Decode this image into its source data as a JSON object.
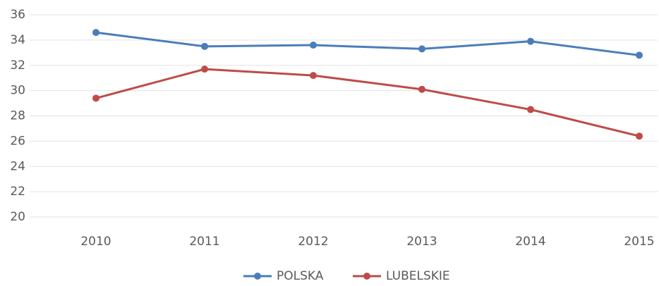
{
  "chart_data": {
    "type": "line",
    "categories": [
      "2010",
      "2011",
      "2012",
      "2013",
      "2014",
      "2015"
    ],
    "series": [
      {
        "name": "POLSKA",
        "color": "#4a7ebb",
        "values": [
          34.6,
          33.5,
          33.6,
          33.3,
          33.9,
          32.8
        ]
      },
      {
        "name": "LUBELSKIE",
        "color": "#be4b48",
        "values": [
          29.4,
          31.7,
          31.2,
          30.1,
          28.5,
          26.4
        ]
      }
    ],
    "ylim": [
      20,
      36
    ],
    "yticks": [
      20,
      22,
      24,
      26,
      28,
      30,
      32,
      34,
      36
    ],
    "grid": true,
    "legend": "bottom"
  }
}
